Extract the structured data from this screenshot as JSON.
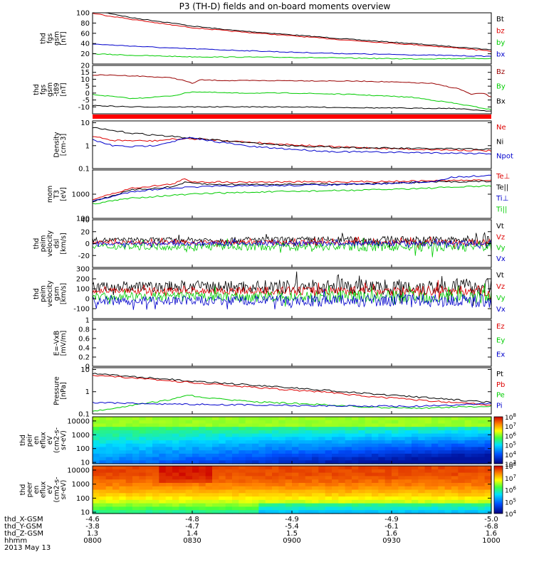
{
  "title": "P3 (TH-D) fields and on-board moments overview",
  "date": "2013 May 13",
  "time_axis": {
    "label": "hhmm",
    "ticks": [
      "0800",
      "0830",
      "0900",
      "0930",
      "1000"
    ],
    "ephemeris": [
      {
        "label": "thd_X-GSM",
        "values": [
          "-4.6",
          "-4.8",
          "-4.9",
          "-4.9",
          "-5.0"
        ]
      },
      {
        "label": "thd_Y-GSM",
        "values": [
          "-3.8",
          "-4.7",
          "-5.4",
          "-6.1",
          "-6.8"
        ]
      },
      {
        "label": "thd_Z-GSM",
        "values": [
          "1.3",
          "1.4",
          "1.5",
          "1.6",
          "1.6"
        ]
      }
    ]
  },
  "colors": {
    "black": "#000000",
    "red": "#dd0000",
    "green": "#00cc00",
    "blue": "#0000cc",
    "darkred": "#990000",
    "bar": "#ff0000"
  },
  "chart_data": [
    {
      "type": "line",
      "ylabel": [
        "thd",
        "fgs",
        "gsm",
        "[nT]"
      ],
      "ylim": [
        0,
        100
      ],
      "yscale": "linear",
      "yticks": [
        20,
        40,
        60,
        80,
        100
      ],
      "series": [
        {
          "name": "Bt",
          "color": "#000000",
          "x": [
            0,
            0.05,
            0.1,
            0.2,
            0.25,
            0.35,
            0.5,
            0.65,
            0.8,
            0.92,
            1.0
          ],
          "y": [
            104,
            98,
            90,
            80,
            74,
            66,
            57,
            48,
            40,
            33,
            28
          ]
        },
        {
          "name": "bz",
          "color": "#dd0000",
          "x": [
            0,
            0.1,
            0.2,
            0.25,
            0.35,
            0.5,
            0.65,
            0.8,
            0.92,
            1.0
          ],
          "y": [
            99,
            87,
            76,
            71,
            64,
            55,
            46,
            38,
            31,
            25
          ]
        },
        {
          "name": "by",
          "color": "#00cc00",
          "x": [
            0,
            0.1,
            0.2,
            0.25,
            0.5,
            0.8,
            1.0
          ],
          "y": [
            20,
            17,
            15,
            14,
            13,
            10,
            11
          ]
        },
        {
          "name": "bx",
          "color": "#0000cc",
          "x": [
            0,
            0.2,
            0.35,
            0.5,
            0.65,
            0.8,
            1.0
          ],
          "y": [
            39,
            31,
            27,
            23,
            20,
            18,
            15
          ]
        }
      ]
    },
    {
      "type": "line",
      "ylabel": [
        "thd",
        "fgs",
        "gsm",
        "-t89",
        "[nT]"
      ],
      "ylim": [
        -15,
        20
      ],
      "yscale": "linear",
      "yticks": [
        -10,
        -5,
        0,
        5,
        10,
        15,
        20
      ],
      "series": [
        {
          "name": "Bz",
          "color": "#990000",
          "x": [
            0,
            0.04,
            0.1,
            0.2,
            0.23,
            0.25,
            0.27,
            0.35,
            0.5,
            0.7,
            0.85,
            0.92,
            0.95,
            0.98,
            1.0
          ],
          "y": [
            13,
            13,
            12.5,
            11,
            9,
            7,
            9.5,
            9,
            9,
            8.5,
            7,
            3,
            -1,
            0,
            -3
          ]
        },
        {
          "name": "By",
          "color": "#00cc00",
          "x": [
            0,
            0.1,
            0.2,
            0.25,
            0.35,
            0.5,
            0.65,
            0.8,
            0.9,
            1.0
          ],
          "y": [
            -1,
            -4,
            -2,
            1,
            0,
            0,
            -1,
            -3,
            -7,
            -12
          ]
        },
        {
          "name": "Bx",
          "color": "#000000",
          "x": [
            0,
            0.1,
            0.2,
            0.35,
            0.5,
            0.65,
            0.8,
            0.9,
            1.0
          ],
          "y": [
            -9,
            -10,
            -10,
            -10,
            -10,
            -10.5,
            -11,
            -11,
            -13
          ]
        }
      ]
    },
    {
      "type": "line",
      "ylabel": [
        "Density",
        "[cm-3]"
      ],
      "ylim": [
        0.1,
        12
      ],
      "yscale": "log",
      "yticks": [
        0.1,
        1.0,
        10.0
      ],
      "series": [
        {
          "name": "Ne",
          "color": "#dd0000",
          "x": [
            0,
            0.05,
            0.15,
            0.2,
            0.24,
            0.3,
            0.4,
            0.5,
            0.6,
            0.8,
            1.0
          ],
          "y": [
            2.5,
            1.7,
            1.6,
            1.9,
            2.0,
            1.8,
            1.4,
            1.1,
            0.9,
            0.7,
            0.6
          ]
        },
        {
          "name": "Ni",
          "color": "#000000",
          "x": [
            0,
            0.05,
            0.1,
            0.2,
            0.3,
            0.4,
            0.5,
            0.6,
            0.8,
            1.0
          ],
          "y": [
            6,
            4.5,
            3.5,
            2.5,
            1.8,
            1.3,
            1.0,
            0.85,
            0.75,
            0.7
          ]
        },
        {
          "name": "Npot",
          "color": "#0000cc",
          "x": [
            0,
            0.05,
            0.1,
            0.15,
            0.2,
            0.24,
            0.3,
            0.4,
            0.5,
            0.6,
            0.8,
            1.0
          ],
          "y": [
            1.8,
            1.0,
            0.9,
            1.0,
            1.5,
            2.2,
            1.6,
            0.9,
            0.7,
            0.55,
            0.5,
            0.45
          ]
        }
      ]
    },
    {
      "type": "line",
      "ylabel": [
        "mom",
        "T3",
        "[eV]"
      ],
      "ylim": [
        100,
        10000
      ],
      "yscale": "log",
      "yticks": [
        100,
        1000
      ],
      "series": [
        {
          "name": "Te⊥",
          "color": "#dd0000",
          "x": [
            0,
            0.1,
            0.2,
            0.23,
            0.25,
            0.3,
            0.5,
            0.7,
            0.85,
            1.0
          ],
          "y": [
            600,
            1800,
            2600,
            4200,
            3300,
            3200,
            3200,
            3300,
            3600,
            3800
          ]
        },
        {
          "name": "Te||",
          "color": "#000000",
          "x": [
            0,
            0.1,
            0.2,
            0.23,
            0.3,
            0.5,
            0.7,
            0.85,
            1.0
          ],
          "y": [
            500,
            1500,
            2000,
            3000,
            2500,
            2600,
            2700,
            3200,
            3400
          ]
        },
        {
          "name": "Ti⊥",
          "color": "#0000cc",
          "x": [
            0,
            0.1,
            0.2,
            0.3,
            0.5,
            0.7,
            0.85,
            0.9,
            1.0
          ],
          "y": [
            500,
            1300,
            1800,
            2100,
            2300,
            2600,
            3200,
            5000,
            6000
          ]
        },
        {
          "name": "Ti||",
          "color": "#00cc00",
          "x": [
            0,
            0.1,
            0.2,
            0.3,
            0.5,
            0.7,
            0.85,
            1.0
          ],
          "y": [
            400,
            700,
            900,
            1100,
            1300,
            1500,
            1800,
            2200
          ]
        }
      ]
    },
    {
      "type": "line",
      "ylabel": [
        "thd",
        "peim",
        "velocity",
        "dsl",
        "[km/s]"
      ],
      "ylim": [
        -40,
        40
      ],
      "yscale": "linear",
      "yticks": [
        -20,
        0,
        20,
        40
      ],
      "series": [
        {
          "name": "Vt",
          "color": "#000000",
          "base": 6,
          "noise": 4
        },
        {
          "name": "Vz",
          "color": "#dd0000",
          "base": 2,
          "noise": 3
        },
        {
          "name": "Vy",
          "color": "#00cc00",
          "base": -5,
          "noise": 5
        },
        {
          "name": "Vx",
          "color": "#0000cc",
          "base": 0,
          "noise": 3
        }
      ]
    },
    {
      "type": "line",
      "ylabel": [
        "thd",
        "peim",
        "velocity",
        "gsm",
        "[km/s]"
      ],
      "ylim": [
        -200,
        300
      ],
      "yscale": "linear",
      "yticks": [
        -100,
        0,
        100,
        200,
        300
      ],
      "series": [
        {
          "name": "Vt",
          "color": "#000000",
          "base": 120,
          "noise": 50
        },
        {
          "name": "Vz",
          "color": "#dd0000",
          "base": 80,
          "noise": 30
        },
        {
          "name": "Vy",
          "color": "#00cc00",
          "base": 20,
          "noise": 40
        },
        {
          "name": "Vx",
          "color": "#0000cc",
          "base": -20,
          "noise": 40
        }
      ]
    },
    {
      "type": "line",
      "ylabel": [
        "E=-VxB",
        "[mV/m]"
      ],
      "ylim": [
        0,
        1.0
      ],
      "yscale": "linear",
      "yticks": [
        0.0,
        0.2,
        0.4,
        0.6,
        0.8,
        1.0
      ],
      "series": [
        {
          "name": "Ez",
          "color": "#dd0000"
        },
        {
          "name": "Ey",
          "color": "#00cc00"
        },
        {
          "name": "Ex",
          "color": "#0000cc"
        }
      ]
    },
    {
      "type": "line",
      "ylabel": [
        "Pressure",
        "[nPa]"
      ],
      "ylim": [
        0.1,
        12
      ],
      "yscale": "log",
      "yticks": [
        0.1,
        1.0,
        10.0
      ],
      "series": [
        {
          "name": "Pt",
          "color": "#000000",
          "x": [
            0,
            0.1,
            0.2,
            0.3,
            0.4,
            0.5,
            0.6,
            0.7,
            0.8,
            0.9,
            1.0
          ],
          "y": [
            6.5,
            4.8,
            3.5,
            2.6,
            2.0,
            1.5,
            1.1,
            0.8,
            0.6,
            0.45,
            0.33
          ]
        },
        {
          "name": "Pb",
          "color": "#dd0000",
          "x": [
            0,
            0.1,
            0.2,
            0.3,
            0.4,
            0.5,
            0.6,
            0.7,
            0.8,
            0.9,
            1.0
          ],
          "y": [
            5.5,
            4.2,
            3.0,
            2.2,
            1.6,
            1.2,
            0.9,
            0.6,
            0.45,
            0.33,
            0.25
          ]
        },
        {
          "name": "Pe",
          "color": "#00cc00",
          "x": [
            0,
            0.1,
            0.2,
            0.24,
            0.3,
            0.4,
            0.5,
            0.6,
            0.7,
            0.8,
            0.9,
            1.0
          ],
          "y": [
            0.13,
            0.25,
            0.45,
            0.7,
            0.5,
            0.35,
            0.3,
            0.25,
            0.2,
            0.18,
            0.2,
            0.22
          ]
        },
        {
          "name": "Pi",
          "color": "#0000cc",
          "x": [
            0,
            0.1,
            0.2,
            0.4,
            0.6,
            0.8,
            0.9,
            1.0
          ],
          "y": [
            0.33,
            0.3,
            0.28,
            0.25,
            0.23,
            0.22,
            0.25,
            0.3
          ]
        }
      ]
    },
    {
      "type": "heatmap",
      "ylabel": [
        "thd",
        "peir",
        "en",
        "eflux",
        "eV",
        "(cm2-s-",
        "sr-eV)"
      ],
      "ylim": [
        8,
        20000
      ],
      "yscale": "log",
      "yticks": [
        10,
        100,
        1000,
        10000
      ],
      "colorbar": {
        "min_exp": 3,
        "max_exp": 8,
        "ticks": [
          3,
          4,
          5,
          6,
          7,
          8
        ]
      }
    },
    {
      "type": "heatmap",
      "ylabel": [
        "thd",
        "peer",
        "en",
        "eflux",
        "eV",
        "(cm2-s-",
        "sr-eV)"
      ],
      "ylim": [
        8,
        20000
      ],
      "yscale": "log",
      "yticks": [
        10,
        100,
        1000,
        10000
      ],
      "colorbar": {
        "min_exp": 4,
        "max_exp": 8,
        "ticks": [
          4,
          5,
          6,
          7,
          8
        ]
      }
    }
  ]
}
